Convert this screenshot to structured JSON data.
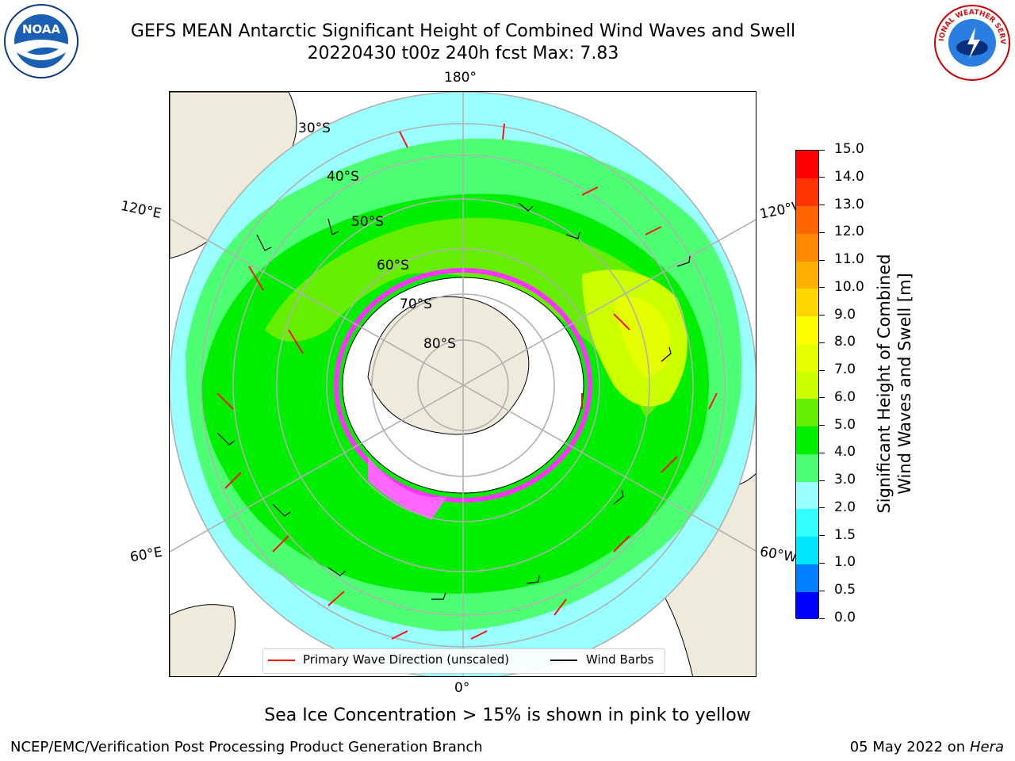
{
  "header": {
    "title_line1": "GEFS MEAN Antarctic Significant Height of Combined Wind Waves and Swell",
    "title_line2": "20220430 t00z 240h fcst   Max: 7.83"
  },
  "logos": {
    "noaa_text": "NOAA",
    "nws_text": "NATIONAL WEATHER SERVICE"
  },
  "map": {
    "projection": "south-polar-stereographic",
    "longitude_labels": [
      "180°",
      "120°E",
      "120°W",
      "60°E",
      "60°W",
      "0°"
    ],
    "latitude_labels": [
      "30°S",
      "40°S",
      "50°S",
      "60°S",
      "70°S",
      "80°S"
    ],
    "note": "Sea Ice Concentration > 15% is shown in pink to yellow"
  },
  "colorbar": {
    "title_line1": "Significant Height of Combined",
    "title_line2": "Wind Waves and Swell [m]",
    "levels": [
      "0.0",
      "0.5",
      "1.0",
      "1.5",
      "2.0",
      "3.0",
      "4.0",
      "5.0",
      "6.0",
      "7.0",
      "8.0",
      "9.0",
      "10.0",
      "11.0",
      "12.0",
      "13.0",
      "14.0",
      "15.0"
    ],
    "colors": [
      "#0000ff",
      "#0080ff",
      "#00e6ff",
      "#33ffff",
      "#99ffff",
      "#4dff73",
      "#00ee00",
      "#66ee00",
      "#ccff00",
      "#e6ff00",
      "#ffff00",
      "#ffd700",
      "#ffb000",
      "#ff8800",
      "#ff6600",
      "#ff3300",
      "#ff0000"
    ]
  },
  "legend": {
    "primary_wave": "Primary Wave Direction (unscaled)",
    "wind_barbs": "Wind Barbs",
    "primary_wave_color": "#ff0000",
    "wind_barbs_color": "#000000"
  },
  "footer": {
    "left": "NCEP/EMC/Verification Post Processing Product Generation Branch",
    "right_date": "05 May 2022 on",
    "right_host": "Hera"
  }
}
